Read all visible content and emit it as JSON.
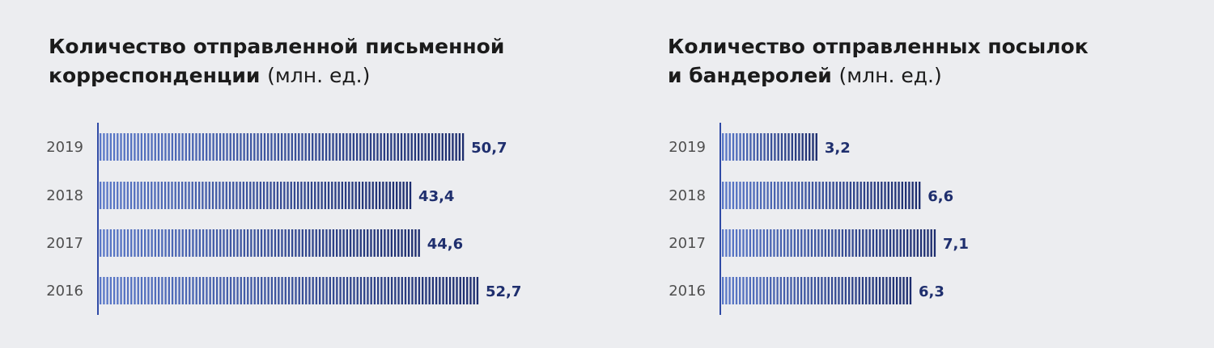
{
  "colors": {
    "background": "#ecedf0",
    "bar_light": "#5a78c8",
    "bar_dark": "#1d2d6e",
    "axis": "#2f4aa6",
    "value_label": "#1f2f6e",
    "tick_label": "#4f4f4f",
    "title": "#1b1b1b"
  },
  "chart_data": [
    {
      "type": "bar",
      "orientation": "horizontal",
      "title_bold": "Количество отправленной письменной корреспонденции",
      "title_bold_line1": "Количество отправленной письменной",
      "title_bold_line2": "корреспонденции",
      "title_unit": "(млн. ед.)",
      "categories": [
        "2019",
        "2018",
        "2017",
        "2016"
      ],
      "values": [
        50.7,
        43.4,
        44.6,
        52.7
      ],
      "value_labels": [
        "50,7",
        "43,4",
        "44,6",
        "52,7"
      ],
      "xlim": [
        0,
        52.7
      ],
      "grid": false,
      "legend": "none"
    },
    {
      "type": "bar",
      "orientation": "horizontal",
      "title_bold": "Количество отправленных посылок и бандеролей",
      "title_bold_line1": "Количество отправленных посылок",
      "title_bold_line2": "и бандеролей",
      "title_unit": "(млн. ед.)",
      "categories": [
        "2019",
        "2018",
        "2017",
        "2016"
      ],
      "values": [
        3.2,
        6.6,
        7.1,
        6.3
      ],
      "value_labels": [
        "3,2",
        "6,6",
        "7,1",
        "6,3"
      ],
      "xlim": [
        0,
        7.1
      ],
      "grid": false,
      "legend": "none"
    }
  ]
}
